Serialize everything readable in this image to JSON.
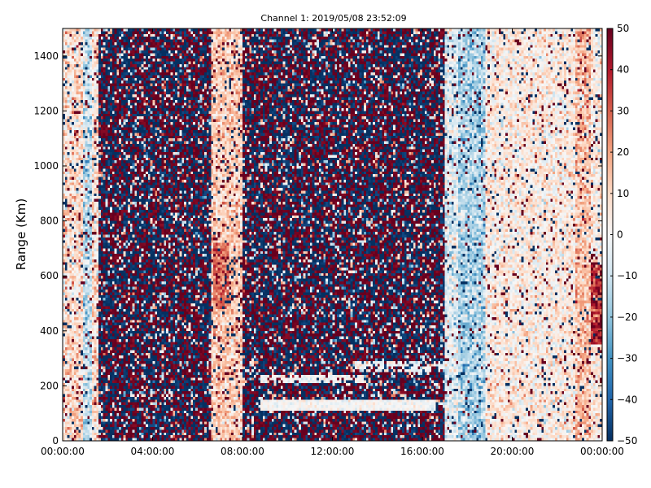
{
  "chart_data": {
    "type": "heatmap",
    "title": "Channel 1: 2019/05/08 23:52:09",
    "xlabel": "",
    "ylabel": "Range (Km)",
    "x_ticks": [
      "00:00:00",
      "04:00:00",
      "08:00:00",
      "12:00:00",
      "16:00:00",
      "20:00:00",
      "00:00:00"
    ],
    "y_ticks": [
      "0",
      "200",
      "400",
      "600",
      "800",
      "1000",
      "1200",
      "1400"
    ],
    "y_tick_values": [
      0,
      200,
      400,
      600,
      800,
      1000,
      1200,
      1400
    ],
    "ylim": [
      0,
      1500
    ],
    "xlim_hours": [
      0,
      24
    ],
    "colorbar": {
      "min": -50,
      "max": 50,
      "colormap": "RdBu_r",
      "ticks": [
        "50",
        "40",
        "30",
        "20",
        "10",
        "0",
        "−10",
        "−20",
        "−30",
        "−40",
        "−50"
      ],
      "tick_values": [
        50,
        40,
        30,
        20,
        10,
        0,
        -10,
        -20,
        -30,
        -40,
        -50
      ]
    },
    "regions": [
      {
        "from_h": 0.0,
        "to_h": 1.6,
        "character": "mostly near zero, light red/blue noise"
      },
      {
        "from_h": 1.6,
        "to_h": 6.6,
        "character": "saturated random noise (dark red/dark blue)"
      },
      {
        "from_h": 6.6,
        "to_h": 8.0,
        "character": "mostly light red, warm patch near 600 Km"
      },
      {
        "from_h": 8.0,
        "to_h": 17.0,
        "character": "saturated random noise with white bands near 130 and 250 Km"
      },
      {
        "from_h": 17.0,
        "to_h": 24.0,
        "character": "mostly near zero, blue column around 18 h, red edge near 23.5 h"
      }
    ]
  }
}
